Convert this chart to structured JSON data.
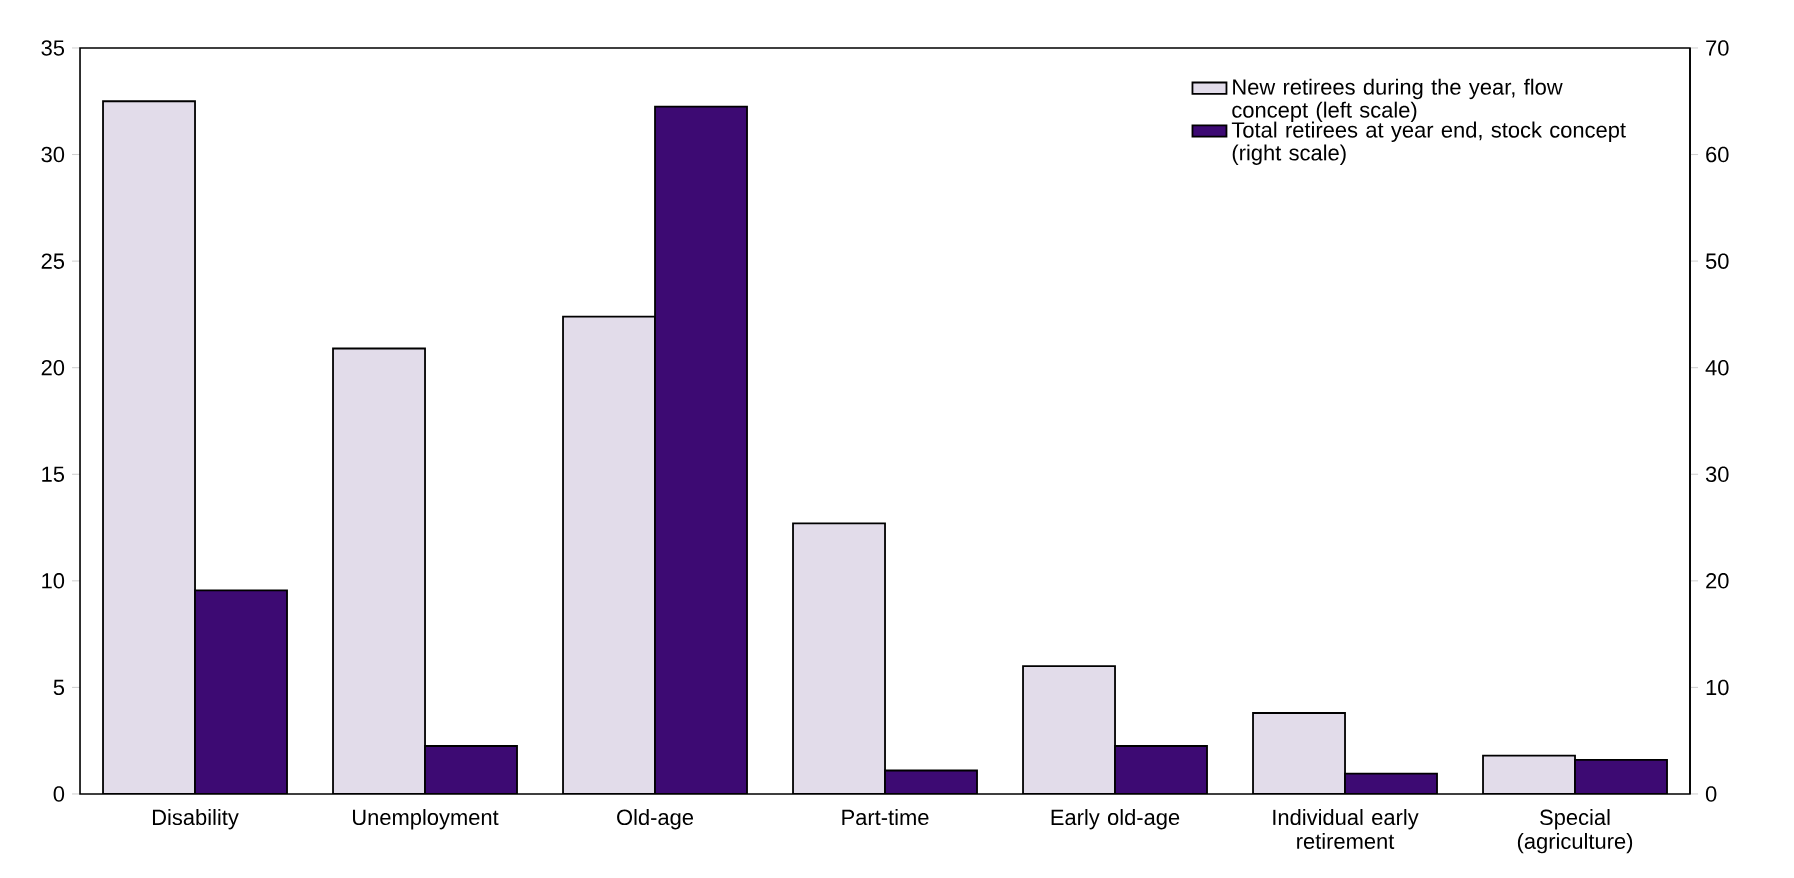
{
  "chart_data": {
    "type": "bar",
    "categories": [
      "Disability",
      "Unemployment",
      "Old-age",
      "Part-time",
      "Early old-age",
      "Individual early retirement",
      "Special (agriculture)"
    ],
    "series": [
      {
        "name": "New retirees during the year, flow concept (left scale)",
        "color": "#e2dcea",
        "values": [
          32.5,
          20.9,
          22.4,
          12.7,
          6.0,
          3.8,
          1.8
        ]
      },
      {
        "name": "Total retirees at year end, stock concept (right scale)",
        "color": "#3d0a73",
        "axis": "y2",
        "values": [
          19.1,
          4.5,
          64.5,
          2.2,
          4.5,
          1.9,
          3.2
        ]
      }
    ],
    "ylim": [
      0,
      35
    ],
    "yticks": [
      0,
      5,
      10,
      15,
      20,
      25,
      30,
      35
    ],
    "y2lim": [
      0,
      70
    ],
    "y2ticks": [
      0,
      10,
      20,
      30,
      40,
      50,
      60,
      70
    ],
    "legend": "top right"
  }
}
